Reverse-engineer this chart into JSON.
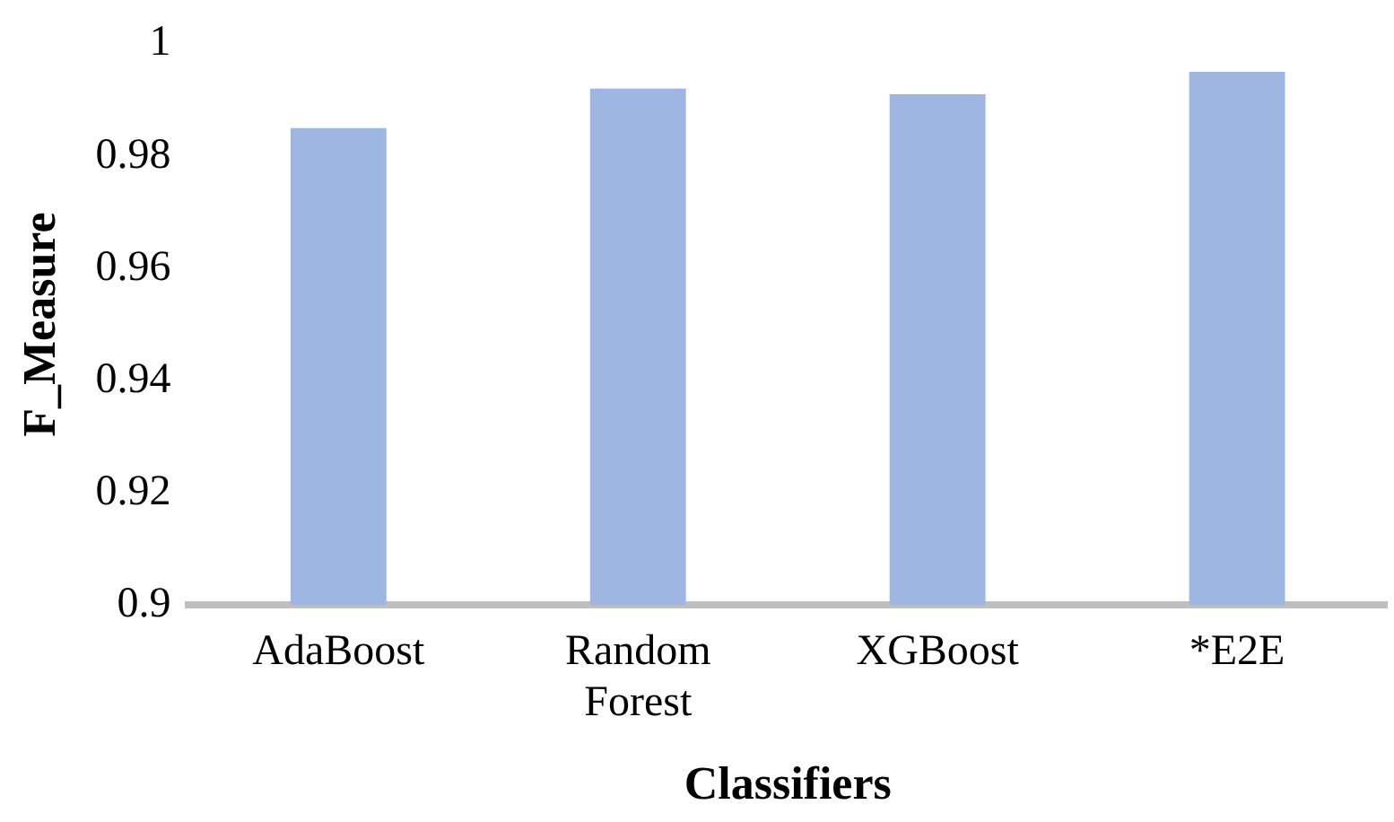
{
  "chart_data": {
    "type": "bar",
    "xlabel": "Classifiers",
    "ylabel": "F_Measure",
    "categories": [
      "AdaBoost",
      "Random Forest",
      "XGBoost",
      "*E2E"
    ],
    "values": [
      0.985,
      0.992,
      0.991,
      0.995
    ],
    "color": "#9fb6e3",
    "ylim": [
      0.9,
      1
    ],
    "yticks": [
      0.9,
      0.92,
      0.94,
      0.96,
      0.98,
      1
    ],
    "grid": false,
    "legend": false
  }
}
